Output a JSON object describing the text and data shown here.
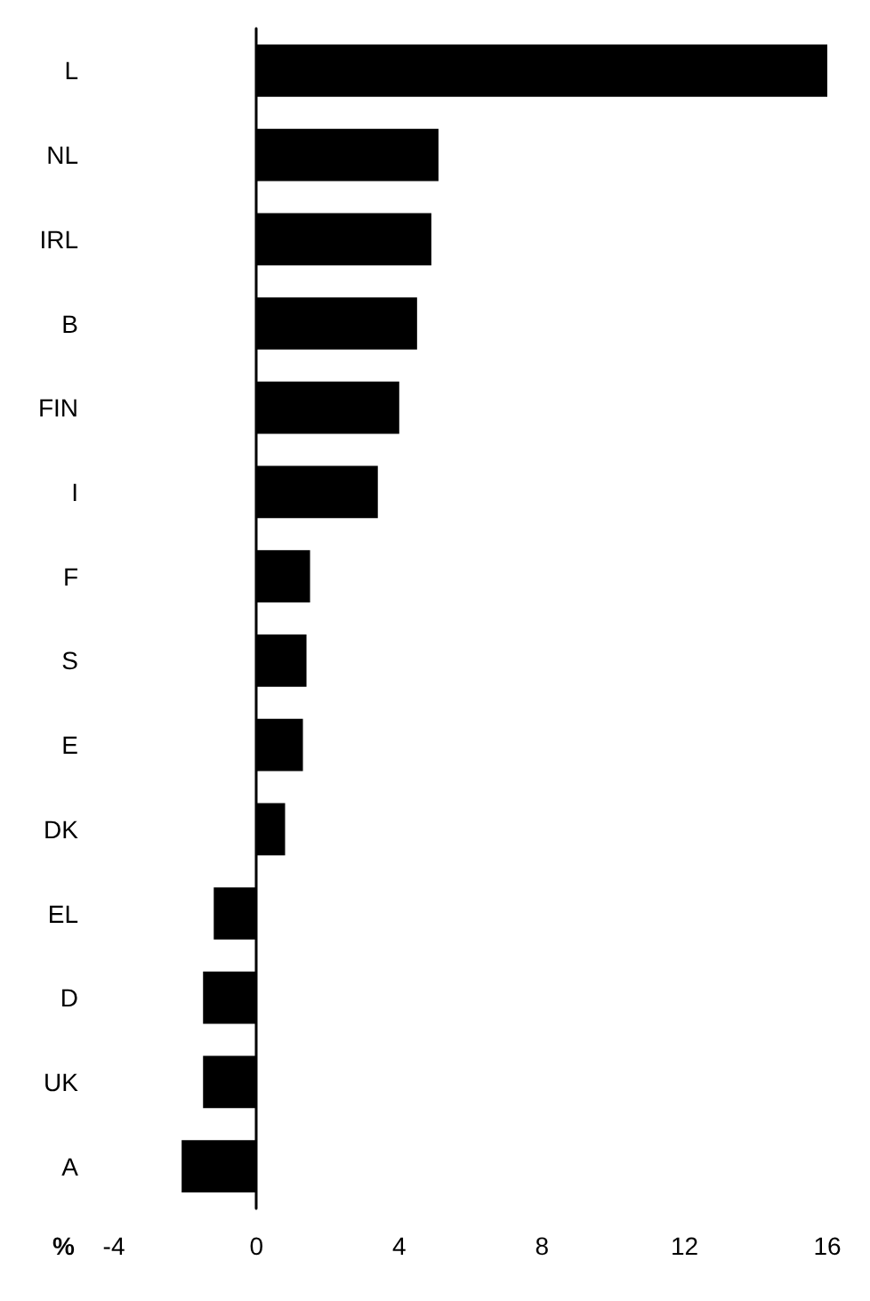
{
  "chart_data": {
    "type": "bar",
    "orientation": "horizontal",
    "xlabel": "%",
    "categories": [
      "L",
      "NL",
      "IRL",
      "B",
      "FIN",
      "I",
      "F",
      "S",
      "E",
      "DK",
      "EL",
      "D",
      "UK",
      "A"
    ],
    "values": [
      16,
      5.1,
      4.9,
      4.5,
      4.0,
      3.4,
      1.5,
      1.4,
      1.3,
      0.8,
      -1.2,
      -1.5,
      -1.5,
      -2.1
    ],
    "color": "#000000",
    "xlim": [
      -4,
      16
    ],
    "xticks": [
      -4,
      0,
      4,
      8,
      12,
      16
    ]
  }
}
